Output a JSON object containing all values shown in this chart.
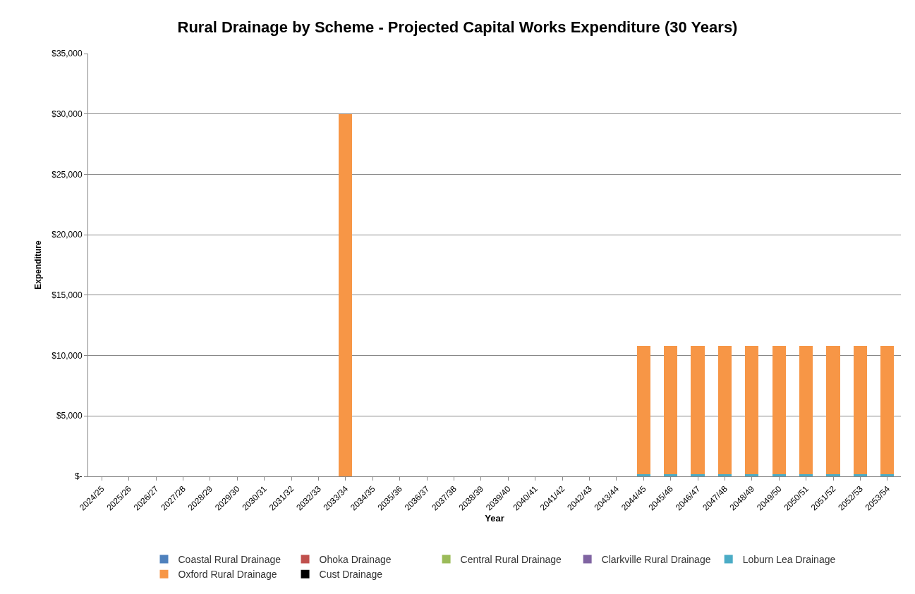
{
  "chart_data": {
    "type": "bar",
    "stacked": true,
    "title": "Rural Drainage by Scheme - Projected Capital Works Expenditure (30 Years)",
    "xlabel": "Year",
    "ylabel": "Expenditure",
    "categories": [
      "2024/25",
      "2025/26",
      "2026/27",
      "2027/28",
      "2028/29",
      "2029/30",
      "2030/31",
      "2031/32",
      "2032/33",
      "2033/34",
      "2034/35",
      "2035/36",
      "2036/37",
      "2037/38",
      "2038/39",
      "2039/40",
      "2040/41",
      "2041/42",
      "2042/43",
      "2043/44",
      "2044/45",
      "2045/46",
      "2046/47",
      "2047/48",
      "2048/49",
      "2049/50",
      "2050/51",
      "2051/52",
      "2052/53",
      "2053/54"
    ],
    "series": [
      {
        "name": "Coastal Rural Drainage",
        "color": "#4f81bd",
        "values": [
          0,
          0,
          0,
          0,
          0,
          0,
          0,
          0,
          0,
          0,
          0,
          0,
          0,
          0,
          0,
          0,
          0,
          0,
          0,
          0,
          0,
          0,
          0,
          0,
          0,
          0,
          0,
          0,
          0,
          0
        ]
      },
      {
        "name": "Ohoka Drainage",
        "color": "#c0504d",
        "values": [
          0,
          0,
          0,
          0,
          0,
          0,
          0,
          0,
          0,
          0,
          0,
          0,
          0,
          0,
          0,
          0,
          0,
          0,
          0,
          0,
          0,
          0,
          0,
          0,
          0,
          0,
          0,
          0,
          0,
          0
        ]
      },
      {
        "name": "Central Rural Drainage",
        "color": "#9bbb59",
        "values": [
          0,
          0,
          0,
          0,
          0,
          0,
          0,
          0,
          0,
          0,
          0,
          0,
          0,
          0,
          0,
          0,
          0,
          0,
          0,
          0,
          0,
          0,
          0,
          0,
          0,
          0,
          0,
          0,
          0,
          0
        ]
      },
      {
        "name": "Clarkville Rural Drainage",
        "color": "#8064a2",
        "values": [
          0,
          0,
          0,
          0,
          0,
          0,
          0,
          0,
          0,
          0,
          0,
          0,
          0,
          0,
          0,
          0,
          0,
          0,
          0,
          0,
          0,
          0,
          0,
          0,
          0,
          0,
          0,
          0,
          0,
          0
        ]
      },
      {
        "name": "Loburn Lea Drainage",
        "color": "#4bacc6",
        "values": [
          0,
          0,
          0,
          0,
          0,
          0,
          0,
          0,
          0,
          0,
          0,
          0,
          0,
          0,
          0,
          0,
          0,
          0,
          0,
          0,
          200,
          200,
          200,
          200,
          200,
          200,
          200,
          200,
          200,
          200
        ]
      },
      {
        "name": "Oxford Rural Drainage",
        "color": "#f79646",
        "values": [
          0,
          0,
          0,
          0,
          0,
          0,
          0,
          0,
          0,
          30000,
          0,
          0,
          0,
          0,
          0,
          0,
          0,
          0,
          0,
          0,
          10600,
          10600,
          10600,
          10600,
          10600,
          10600,
          10600,
          10600,
          10600,
          10600
        ]
      },
      {
        "name": "Cust Drainage",
        "color": "#000000",
        "values": [
          0,
          0,
          0,
          0,
          0,
          0,
          0,
          0,
          0,
          0,
          0,
          0,
          0,
          0,
          0,
          0,
          0,
          0,
          0,
          0,
          0,
          0,
          0,
          0,
          0,
          0,
          0,
          0,
          0,
          0
        ]
      }
    ],
    "ylim": [
      0,
      35000
    ],
    "yticks": [
      {
        "value": 0,
        "label": "$-"
      },
      {
        "value": 5000,
        "label": "$5,000"
      },
      {
        "value": 10000,
        "label": "$10,000"
      },
      {
        "value": 15000,
        "label": "$15,000"
      },
      {
        "value": 20000,
        "label": "$20,000"
      },
      {
        "value": 25000,
        "label": "$25,000"
      },
      {
        "value": 30000,
        "label": "$30,000"
      },
      {
        "value": 35000,
        "label": "$35,000"
      }
    ],
    "grid": "y",
    "legend": "bottom"
  }
}
